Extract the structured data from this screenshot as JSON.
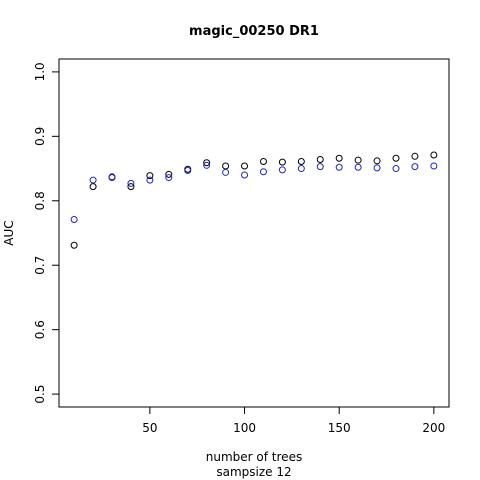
{
  "chart_data": {
    "type": "scatter",
    "title": "magic_00250 DR1",
    "xlabel": "number of trees",
    "xlabel2": "sampsize 12",
    "ylabel": "AUC",
    "xlim": [
      2,
      208
    ],
    "ylim": [
      0.48,
      1.02
    ],
    "x_ticks": [
      50,
      100,
      150,
      200
    ],
    "y_ticks": [
      0.5,
      0.6,
      0.7,
      0.8,
      0.9,
      1.0
    ],
    "x_tick_labels": [
      "50",
      "100",
      "150",
      "200"
    ],
    "y_tick_labels": [
      "0.5",
      "0.6",
      "0.7",
      "0.8",
      "0.9",
      "1.0"
    ],
    "grid": false,
    "legend": "none",
    "x": [
      10,
      20,
      30,
      40,
      50,
      60,
      70,
      80,
      90,
      100,
      110,
      120,
      130,
      140,
      150,
      160,
      170,
      180,
      190,
      200
    ],
    "series": [
      {
        "color": "#000000",
        "values": [
          0.731,
          0.822,
          0.837,
          0.822,
          0.839,
          0.841,
          0.849,
          0.859,
          0.854,
          0.854,
          0.861,
          0.86,
          0.861,
          0.864,
          0.866,
          0.863,
          0.862,
          0.866,
          0.869,
          0.871
        ]
      },
      {
        "color": "#2222cc",
        "values": [
          0.771,
          0.832,
          0.836,
          0.827,
          0.832,
          0.836,
          0.847,
          0.855,
          0.844,
          0.84,
          0.845,
          0.848,
          0.85,
          0.853,
          0.852,
          0.852,
          0.851,
          0.85,
          0.853,
          0.854
        ]
      }
    ]
  }
}
